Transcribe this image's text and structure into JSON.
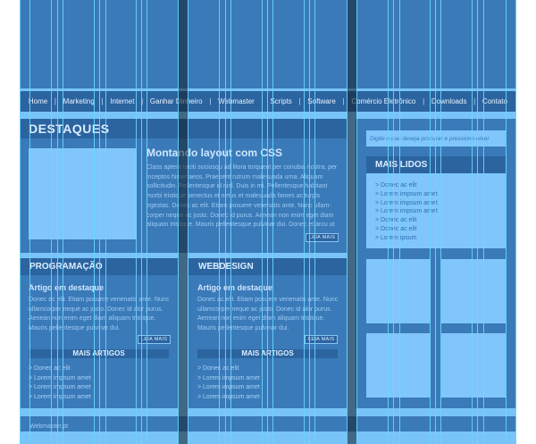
{
  "nav": {
    "items": [
      "Home",
      "Marketing",
      "Internet",
      "Ganhar Dinheiro",
      "Webmaster",
      "Scripts",
      "Software",
      "Comércio Eletrônico",
      "Downloads",
      "Contato"
    ],
    "separator": "|"
  },
  "destaques": {
    "heading": "DESTAQUES",
    "title": "Montando layout com CSS",
    "text": "Class aptent taciti sociosqu ad litora torquent per conubia nostra, per inceptos himenaeos. Praesent rutrum malesuada urna. Aliquam sollicitudin. Pellentesque id nisl. Duis in mi. Pellentesque habitant morbi tristique senectus et netus et malesuada fames ac turpis egestas. Donec ac elit. Etiam posuere venenatis ante. Nunc ullam-corper neque ac justo. Donec id purus. Aenean non enim eget diam aliquam tristique. Mauris pellentesque pulvinar dui. Donec et arcu ut",
    "button": "LEIA MAIS"
  },
  "programacao": {
    "heading": "PROGRAMAÇÃO",
    "article_title": "Artigo em destaque",
    "article_text": "Donec ac elit. Etiam posuere venenatis ante. Nunc ullamcorper neque ac justo. Donec id alor purus. Aenean non enim eget diam aliquam tristique. Mauris pellentesque pulvinar dui.",
    "button": "LEIA MAIS",
    "more_heading": "MAIS ARTIGOS",
    "more_items": [
      "> Donec ac elit",
      "> Lorem impsum amet",
      "> Lorem impsum amet",
      "> Lorem impsum amet"
    ]
  },
  "webdesign": {
    "heading": "WEBDESIGN",
    "article_title": "Artigo em destaque",
    "article_text": "Donec ac elit. Etiam posuere venenatis ante. Nunc ullamcorper neque ac justo. Donec id alor purus. Aenean non enim eget diam aliquam tristique. Mauris pellentesque pulvinar dui.",
    "button": "LEIA MAIS",
    "more_heading": "MAIS ARTIGOS",
    "more_items": [
      "> Donec ac elit",
      "> Lorem impsum amet",
      "> Lorem impsum amet",
      "> Lorem impsum amet"
    ]
  },
  "sidebar": {
    "search_placeholder": "Digite o que deseja procurar e pressione enter",
    "mais_lidos_heading": "MAIS LIDOS",
    "mais_lidos": [
      "> Donec ac elit",
      "> Lorem impsum amet",
      "> Lorem impsum amet",
      "> Lorem impsum amet",
      "> Donec ac elit",
      "> Donec ac elit",
      "> Lorem ipsum"
    ]
  },
  "footer": {
    "text": "Webmaster.pt"
  },
  "colors": {
    "page_bg": "#78c4f8",
    "panel": "#3a7ab8",
    "header_bar": "#2c64a0",
    "light_block": "#80c6fb",
    "guide_line": "#66d8ff"
  }
}
